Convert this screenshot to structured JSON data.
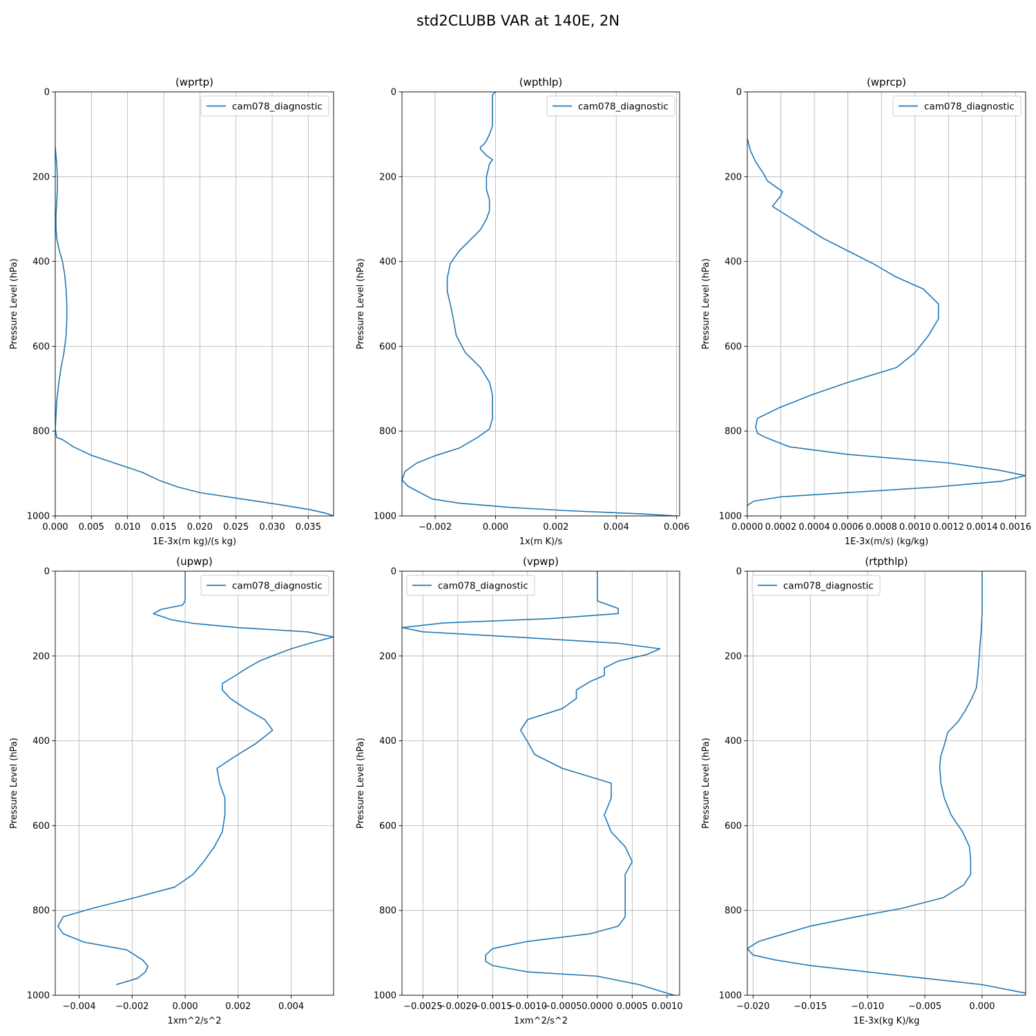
{
  "figure_title": "std2CLUBB VAR at 140E, 2N",
  "chart_data": [
    {
      "type": "line",
      "title": "(wprtp)",
      "xlabel": "1E-3x(m kg)/(s kg)",
      "ylabel": "Pressure Level (hPa)",
      "xlim": [
        0,
        0.0385
      ],
      "ylim": [
        1000,
        0
      ],
      "yinverted": true,
      "xticks": [
        0,
        0.005,
        0.01,
        0.015,
        0.02,
        0.025,
        0.03,
        0.035
      ],
      "xtick_labels": [
        "0.000",
        "0.005",
        "0.010",
        "0.015",
        "0.020",
        "0.025",
        "0.030",
        "0.035"
      ],
      "yticks": [
        0,
        200,
        400,
        600,
        800,
        1000
      ],
      "ytick_labels": [
        "0",
        "200",
        "400",
        "600",
        "800",
        "1000"
      ],
      "grid": true,
      "legend_loc": "upper-right",
      "series": [
        {
          "name": "cam078_diagnostic",
          "color": "#1f77b4",
          "x": [
            0.0,
            0.0002,
            0.0003,
            0.0003,
            0.0002,
            0.0001,
            0.0001,
            0.0002,
            0.0005,
            0.001,
            0.0013,
            0.0015,
            0.0016,
            0.0016,
            0.0015,
            0.0012,
            0.0008,
            0.0005,
            0.0002,
            0.0,
            0.0002,
            0.001,
            0.0025,
            0.005,
            0.0085,
            0.012,
            0.0145,
            0.017,
            0.02,
            0.025,
            0.0305,
            0.0352,
            0.0375,
            0.0385
          ],
          "y": [
            130,
            170,
            200,
            230,
            260,
            290,
            320,
            345,
            370,
            400,
            430,
            465,
            500,
            535,
            575,
            615,
            650,
            685,
            730,
            795,
            815,
            820,
            837,
            857,
            877,
            897,
            917,
            932,
            945,
            958,
            972,
            985,
            994,
            1000
          ]
        }
      ]
    },
    {
      "type": "line",
      "title": "(wpthlp)",
      "xlabel": "1x(m K)/s",
      "ylabel": "Pressure Level (hPa)",
      "xlim": [
        -0.0031,
        0.0061
      ],
      "ylim": [
        1000,
        0
      ],
      "yinverted": true,
      "xticks": [
        -0.002,
        0,
        0.002,
        0.004,
        0.006
      ],
      "xtick_labels": [
        "−0.002",
        "0.000",
        "0.002",
        "0.004",
        "0.006"
      ],
      "yticks": [
        0,
        200,
        400,
        600,
        800,
        1000
      ],
      "ytick_labels": [
        "0",
        "200",
        "400",
        "600",
        "800",
        "1000"
      ],
      "grid": true,
      "legend_loc": "upper-right",
      "series": [
        {
          "name": "cam078_diagnostic",
          "color": "#1f77b4",
          "x": [
            -0.0,
            -0.0001,
            -0.0001,
            -0.0001,
            -0.0001,
            -0.0002,
            -0.0003,
            -0.0004,
            -0.0005,
            -0.0005,
            -0.0003,
            -0.0001,
            -0.0002,
            -0.0003,
            -0.0003,
            -0.0002,
            -0.0002,
            -0.0003,
            -0.0005,
            -0.0012,
            -0.0015,
            -0.0016,
            -0.0016,
            -0.0015,
            -0.0014,
            -0.0013,
            -0.001,
            -0.0005,
            -0.0002,
            -0.0001,
            -0.0001,
            -0.0001,
            -0.0002,
            -0.0006,
            -0.0012,
            -0.002,
            -0.0026,
            -0.003,
            -0.0031,
            -0.0029,
            -0.0025,
            -0.0021,
            -0.0012,
            0.0005,
            0.0025,
            0.0048,
            0.006
          ],
          "y": [
            0,
            7,
            30,
            70,
            80,
            100,
            115,
            125,
            130,
            135,
            150,
            160,
            170,
            200,
            230,
            255,
            280,
            300,
            325,
            375,
            405,
            440,
            470,
            500,
            535,
            575,
            615,
            650,
            685,
            715,
            745,
            770,
            795,
            815,
            840,
            858,
            875,
            895,
            915,
            930,
            945,
            960,
            970,
            980,
            988,
            995,
            1000
          ]
        }
      ]
    },
    {
      "type": "line",
      "title": "(wprcp)",
      "xlabel": "1E-3x(m/s) (kg/kg)",
      "ylabel": "Pressure Level (hPa)",
      "xlim": [
        0,
        0.00166
      ],
      "ylim": [
        1000,
        0
      ],
      "yinverted": true,
      "xticks": [
        0,
        0.0002,
        0.0004,
        0.0006,
        0.0008,
        0.001,
        0.0012,
        0.0014,
        0.0016
      ],
      "xtick_labels": [
        "0.0000",
        "0.0002",
        "0.0004",
        "0.0006",
        "0.0008",
        "0.0010",
        "0.0012",
        "0.0014",
        "0.0016"
      ],
      "yticks": [
        0,
        200,
        400,
        600,
        800,
        1000
      ],
      "ytick_labels": [
        "0",
        "200",
        "400",
        "600",
        "800",
        "1000"
      ],
      "grid": true,
      "legend_loc": "upper-right",
      "series": [
        {
          "name": "cam078_diagnostic",
          "color": "#1f77b4",
          "x": [
            0.0,
            2e-05,
            5e-05,
            0.0001,
            0.00012,
            0.00021,
            0.0002,
            0.00015,
            0.00025,
            0.00035,
            0.00045,
            0.0006,
            0.00075,
            0.00088,
            0.00105,
            0.00114,
            0.00114,
            0.00108,
            0.001,
            0.00089,
            0.0006,
            0.00038,
            0.00019,
            6e-05,
            5e-05,
            6e-05,
            0.00011,
            0.00025,
            0.0006,
            0.0012,
            0.0015,
            0.00166,
            0.00152,
            0.00112,
            0.0006,
            0.0002,
            4e-05,
            0.0
          ],
          "y": [
            110,
            140,
            165,
            195,
            210,
            235,
            245,
            270,
            295,
            320,
            345,
            375,
            405,
            435,
            465,
            500,
            535,
            575,
            615,
            650,
            685,
            715,
            745,
            770,
            790,
            805,
            815,
            837,
            855,
            875,
            892,
            905,
            918,
            932,
            945,
            955,
            965,
            975
          ]
        }
      ]
    },
    {
      "type": "line",
      "title": "(upwp)",
      "xlabel": "1xm^2/s^2",
      "ylabel": "Pressure Level (hPa)",
      "xlim": [
        -0.0049,
        0.0056
      ],
      "ylim": [
        1000,
        0
      ],
      "yinverted": true,
      "xticks": [
        -0.004,
        -0.002,
        0,
        0.002,
        0.004
      ],
      "xtick_labels": [
        "−0.004",
        "−0.002",
        "0.000",
        "0.002",
        "0.004"
      ],
      "yticks": [
        0,
        200,
        400,
        600,
        800,
        1000
      ],
      "ytick_labels": [
        "0",
        "200",
        "400",
        "600",
        "800",
        "1000"
      ],
      "grid": true,
      "legend_loc": "upper-right",
      "series": [
        {
          "name": "cam078_diagnostic",
          "color": "#1f77b4",
          "x": [
            0.0,
            0.0,
            -0.0001,
            -0.0009,
            -0.0012,
            -0.0005,
            0.0003,
            0.002,
            0.0046,
            0.0056,
            0.0047,
            0.004,
            0.0034,
            0.0028,
            0.0023,
            0.0018,
            0.0014,
            0.0014,
            0.0017,
            0.0023,
            0.003,
            0.0033,
            0.0027,
            0.0018,
            0.0012,
            0.0013,
            0.0015,
            0.0015,
            0.0014,
            0.0011,
            0.0007,
            0.0003,
            -0.0004,
            -0.0019,
            -0.0035,
            -0.0046,
            -0.0048,
            -0.0046,
            -0.0038,
            -0.0022,
            -0.0016,
            -0.0014,
            -0.0015,
            -0.0018,
            -0.0026
          ],
          "y": [
            0,
            70,
            80,
            90,
            100,
            115,
            123,
            133,
            143,
            155,
            170,
            183,
            197,
            212,
            230,
            250,
            265,
            280,
            300,
            325,
            350,
            375,
            405,
            440,
            465,
            500,
            535,
            575,
            615,
            650,
            685,
            715,
            745,
            770,
            795,
            815,
            837,
            855,
            875,
            893,
            917,
            932,
            945,
            960,
            975
          ]
        }
      ]
    },
    {
      "type": "line",
      "title": "(vpwp)",
      "xlabel": "1xm^2/s^2",
      "ylabel": "Pressure Level (hPa)",
      "xlim": [
        -0.0028,
        0.00118
      ],
      "ylim": [
        1000,
        0
      ],
      "yinverted": true,
      "xticks": [
        -0.0025,
        -0.002,
        -0.0015,
        -0.001,
        -0.0005,
        0,
        0.0005,
        0.001
      ],
      "xtick_labels": [
        "−0.0025",
        "−0.0020",
        "−0.0015",
        "−0.0010",
        "−0.0005",
        "0.0000",
        "0.0005",
        "0.0010"
      ],
      "yticks": [
        0,
        200,
        400,
        600,
        800,
        1000
      ],
      "ytick_labels": [
        "0",
        "200",
        "400",
        "600",
        "800",
        "1000"
      ],
      "grid": true,
      "legend_loc": "upper-left",
      "series": [
        {
          "name": "cam078_diagnostic",
          "color": "#1f77b4",
          "x": [
            0.0,
            0.0,
            0.0,
            0.0003,
            0.0003,
            -0.0007,
            -0.0022,
            -0.0028,
            -0.0025,
            -0.0012,
            0.0003,
            0.0009,
            0.0007,
            0.0003,
            0.0001,
            0.0001,
            -0.0001,
            -0.0003,
            -0.0003,
            -0.0005,
            -0.001,
            -0.0011,
            -0.001,
            -0.0009,
            -0.0005,
            0.0002,
            0.0002,
            0.0001,
            0.0002,
            0.0004,
            0.0005,
            0.0004,
            0.0004,
            0.0004,
            0.0004,
            0.0004,
            0.0003,
            -0.0001,
            -0.001,
            -0.0015,
            -0.0016,
            -0.0016,
            -0.0015,
            -0.001,
            0.0,
            0.0006,
            0.0011
          ],
          "y": [
            0,
            20,
            70,
            88,
            100,
            112,
            122,
            133,
            143,
            155,
            170,
            183,
            197,
            212,
            228,
            246,
            260,
            280,
            300,
            324,
            350,
            375,
            402,
            432,
            465,
            500,
            535,
            575,
            615,
            650,
            685,
            715,
            745,
            770,
            795,
            815,
            837,
            855,
            873,
            890,
            905,
            920,
            930,
            945,
            955,
            975,
            1000
          ]
        }
      ]
    },
    {
      "type": "line",
      "title": "(rtpthlp)",
      "xlabel": "1E-3x(kg K)/kg",
      "ylabel": "Pressure Level (hPa)",
      "xlim": [
        -0.0205,
        0.0038
      ],
      "ylim": [
        1000,
        0
      ],
      "yinverted": true,
      "xticks": [
        -0.02,
        -0.015,
        -0.01,
        -0.005,
        0
      ],
      "xtick_labels": [
        "−0.020",
        "−0.015",
        "−0.010",
        "−0.005",
        "0.000"
      ],
      "yticks": [
        0,
        200,
        400,
        600,
        800,
        1000
      ],
      "ytick_labels": [
        "0",
        "200",
        "400",
        "600",
        "800",
        "1000"
      ],
      "grid": true,
      "legend_loc": "upper-left",
      "series": [
        {
          "name": "cam078_diagnostic",
          "color": "#1f77b4",
          "x": [
            0.0,
            0.0,
            0.0,
            -0.0001,
            -0.0002,
            -0.0003,
            -0.0004,
            -0.0005,
            -0.0009,
            -0.0015,
            -0.0021,
            -0.003,
            -0.0033,
            -0.0036,
            -0.0037,
            -0.0036,
            -0.0033,
            -0.0027,
            -0.0017,
            -0.0011,
            -0.001,
            -0.001,
            -0.0016,
            -0.0034,
            -0.007,
            -0.011,
            -0.015,
            -0.0175,
            -0.0195,
            -0.0205,
            -0.02,
            -0.018,
            -0.015,
            -0.01,
            -0.005,
            0.0,
            0.0038
          ],
          "y": [
            0,
            50,
            100,
            150,
            180,
            220,
            250,
            275,
            300,
            330,
            355,
            380,
            410,
            435,
            460,
            500,
            535,
            575,
            615,
            650,
            685,
            715,
            740,
            770,
            795,
            815,
            837,
            857,
            873,
            890,
            905,
            917,
            930,
            945,
            960,
            975,
            995
          ]
        }
      ]
    }
  ]
}
